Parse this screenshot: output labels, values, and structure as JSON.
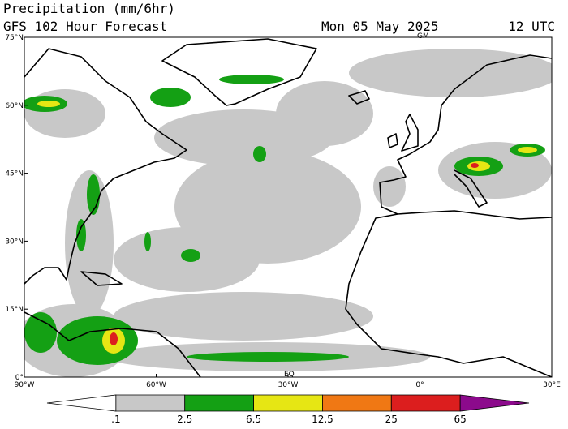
{
  "header": {
    "title": "Precipitation (mm/6hr)",
    "subtitle": "GFS 102 Hour Forecast",
    "date": "Mon 05 May 2025",
    "time": "12 UTC"
  },
  "map": {
    "lat_labels": [
      "75°N",
      "60°N",
      "45°N",
      "30°N",
      "15°N",
      "0°"
    ],
    "lon_labels": [
      "90°W",
      "60°W",
      "30°W",
      "0°",
      "30°E"
    ],
    "gm_label": "GM",
    "eq_label": "EQ"
  },
  "colorbar": {
    "labels": [
      ".1",
      "2.5",
      "6.5",
      "12.5",
      "25",
      "65"
    ],
    "colors": [
      "#ffffff",
      "#c8c8c8",
      "#14a014",
      "#e6e614",
      "#f07814",
      "#dc1e1e",
      "#8c0a8c"
    ]
  }
}
